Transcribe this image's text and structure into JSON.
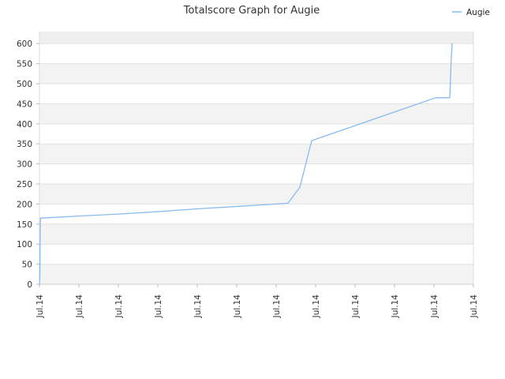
{
  "chart_data": {
    "type": "line",
    "title": "Totalscore Graph for Augie",
    "xlabel": "",
    "ylabel": "",
    "ylim": [
      0,
      630
    ],
    "yticks": [
      0,
      50,
      100,
      150,
      200,
      250,
      300,
      350,
      400,
      450,
      500,
      550,
      600
    ],
    "xtick_labels": [
      "Jul.14",
      "Jul.14",
      "Jul.14",
      "Jul.14",
      "Jul.14",
      "Jul.14",
      "Jul.14",
      "Jul.14",
      "Jul.14",
      "Jul.14",
      "Jul.14",
      "Jul.14"
    ],
    "grid": true,
    "banded_background": true,
    "legend_position": "top-right",
    "series": [
      {
        "name": "Augie",
        "color": "#88bbee",
        "x": [
          0.0,
          0.5,
          1.0,
          1.3,
          3.0,
          50.0,
          100.0,
          150.0,
          200.0,
          250.0,
          300.0,
          315.0,
          330.0,
          345.0,
          502.0,
          520.0,
          522.0,
          523.0
        ],
        "y": [
          0,
          30,
          140,
          165,
          165,
          170,
          175,
          181,
          188,
          194,
          200,
          202,
          242,
          358,
          465,
          465,
          570,
          600
        ]
      }
    ],
    "xlim": [
      0,
      550
    ]
  }
}
